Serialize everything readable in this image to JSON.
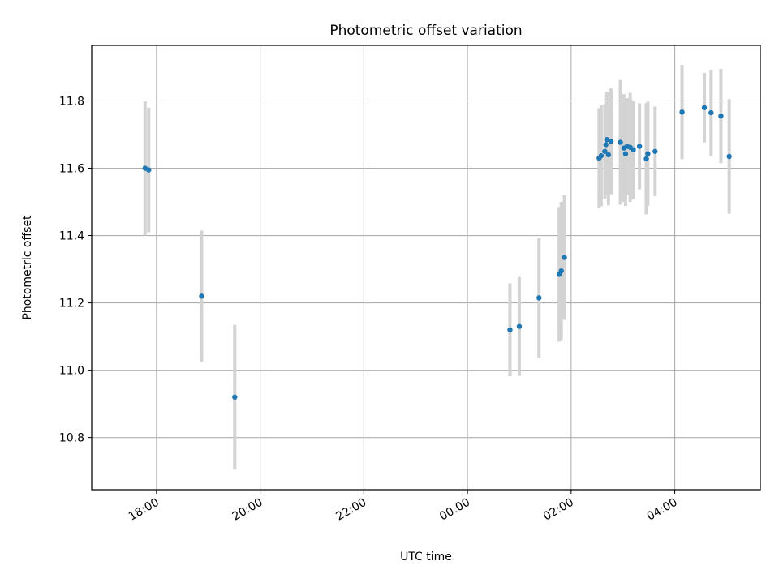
{
  "chart_data": {
    "type": "scatter",
    "title": "Photometric offset variation",
    "xlabel": "UTC time",
    "ylabel": "Photometric offset",
    "x_unit": "hours (continuous time; 24.0 = 00:00 next day)",
    "xlim": [
      16.75,
      29.65
    ],
    "ylim": [
      10.645,
      11.965
    ],
    "x_ticks": [
      18,
      20,
      22,
      24,
      26,
      28
    ],
    "x_tick_labels": [
      "18:00",
      "20:00",
      "22:00",
      "00:00",
      "02:00",
      "04:00"
    ],
    "y_ticks": [
      10.8,
      11.0,
      11.2,
      11.4,
      11.6,
      11.8
    ],
    "y_tick_labels": [
      "10.8",
      "11.0",
      "11.2",
      "11.4",
      "11.6",
      "11.8"
    ],
    "grid": true,
    "marker_color": "#1f77b4",
    "errorbar_color": "#d3d3d3",
    "points": [
      {
        "x": 17.78,
        "y": 11.6,
        "err": 0.2
      },
      {
        "x": 17.85,
        "y": 11.595,
        "err": 0.185
      },
      {
        "x": 18.87,
        "y": 11.22,
        "err": 0.195
      },
      {
        "x": 19.51,
        "y": 10.92,
        "err": 0.215
      },
      {
        "x": 24.82,
        "y": 11.12,
        "err": 0.138
      },
      {
        "x": 25.0,
        "y": 11.13,
        "err": 0.147
      },
      {
        "x": 25.38,
        "y": 11.215,
        "err": 0.178
      },
      {
        "x": 25.77,
        "y": 11.285,
        "err": 0.2
      },
      {
        "x": 25.81,
        "y": 11.295,
        "err": 0.205
      },
      {
        "x": 25.87,
        "y": 11.335,
        "err": 0.185
      },
      {
        "x": 26.54,
        "y": 11.63,
        "err": 0.148
      },
      {
        "x": 26.58,
        "y": 11.637,
        "err": 0.15
      },
      {
        "x": 26.65,
        "y": 11.65,
        "err": 0.14
      },
      {
        "x": 26.67,
        "y": 11.67,
        "err": 0.148
      },
      {
        "x": 26.69,
        "y": 11.685,
        "err": 0.142
      },
      {
        "x": 26.72,
        "y": 11.64,
        "err": 0.15
      },
      {
        "x": 26.77,
        "y": 11.68,
        "err": 0.157
      },
      {
        "x": 26.95,
        "y": 11.677,
        "err": 0.185
      },
      {
        "x": 27.02,
        "y": 11.66,
        "err": 0.16
      },
      {
        "x": 27.05,
        "y": 11.643,
        "err": 0.155
      },
      {
        "x": 27.08,
        "y": 11.665,
        "err": 0.143
      },
      {
        "x": 27.14,
        "y": 11.662,
        "err": 0.162
      },
      {
        "x": 27.2,
        "y": 11.655,
        "err": 0.147
      },
      {
        "x": 27.32,
        "y": 11.665,
        "err": 0.128
      },
      {
        "x": 27.45,
        "y": 11.628,
        "err": 0.165
      },
      {
        "x": 27.48,
        "y": 11.643,
        "err": 0.155
      },
      {
        "x": 27.62,
        "y": 11.65,
        "err": 0.133
      },
      {
        "x": 28.14,
        "y": 11.767,
        "err": 0.14
      },
      {
        "x": 28.57,
        "y": 11.78,
        "err": 0.103
      },
      {
        "x": 28.7,
        "y": 11.765,
        "err": 0.128
      },
      {
        "x": 28.89,
        "y": 11.755,
        "err": 0.14
      },
      {
        "x": 29.05,
        "y": 11.635,
        "err": 0.17
      }
    ]
  }
}
